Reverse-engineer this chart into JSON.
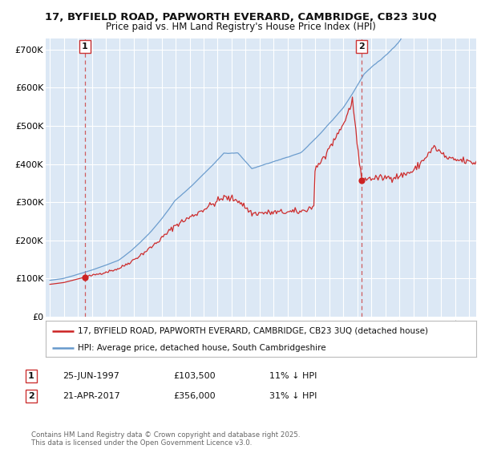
{
  "title_line1": "17, BYFIELD ROAD, PAPWORTH EVERARD, CAMBRIDGE, CB23 3UQ",
  "title_line2": "Price paid vs. HM Land Registry's House Price Index (HPI)",
  "background_color": "#ffffff",
  "plot_bg_color": "#dce8f5",
  "ylabel": "",
  "ylim": [
    0,
    730000
  ],
  "yticks": [
    0,
    100000,
    200000,
    300000,
    400000,
    500000,
    600000,
    700000
  ],
  "ytick_labels": [
    "£0",
    "£100K",
    "£200K",
    "£300K",
    "£400K",
    "£500K",
    "£600K",
    "£700K"
  ],
  "xlim_start": 1994.7,
  "xlim_end": 2025.5,
  "sale1_x": 1997.483,
  "sale1_y": 103500,
  "sale1_label": "1",
  "sale2_x": 2017.306,
  "sale2_y": 356000,
  "sale2_label": "2",
  "red_line_color": "#cc2222",
  "blue_line_color": "#6699cc",
  "dashed_line_color": "#cc4444",
  "legend_entry1": "17, BYFIELD ROAD, PAPWORTH EVERARD, CAMBRIDGE, CB23 3UQ (detached house)",
  "legend_entry2": "HPI: Average price, detached house, South Cambridgeshire",
  "table_row1": [
    "1",
    "25-JUN-1997",
    "£103,500",
    "11% ↓ HPI"
  ],
  "table_row2": [
    "2",
    "21-APR-2017",
    "£356,000",
    "31% ↓ HPI"
  ],
  "footnote": "Contains HM Land Registry data © Crown copyright and database right 2025.\nThis data is licensed under the Open Government Licence v3.0.",
  "grid_color": "#ffffff",
  "title_fontsize": 9.5,
  "subtitle_fontsize": 8.5
}
